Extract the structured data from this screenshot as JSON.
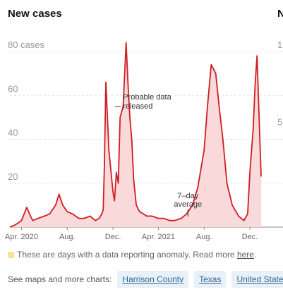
{
  "left_title": "New cases",
  "right_title": "N",
  "right_ticks": [
    "1",
    "5"
  ],
  "footnote": {
    "text": "These are days with a data reporting anomaly. Read more ",
    "link": "here",
    "end": "."
  },
  "more": {
    "label": "See maps and more charts:",
    "links": [
      "Harrison County",
      "Texas",
      "United States"
    ]
  },
  "colors": {
    "line": "#cf1d24",
    "fill": "#f9d9d9",
    "grid": "#e2e2e2",
    "anomaly": "#f6e29b"
  },
  "chart_data": {
    "type": "area",
    "title": "New cases",
    "xlim": [
      "2020-03-01",
      "2021-12-31"
    ],
    "ylim": [
      0,
      85
    ],
    "yticks": [
      {
        "value": 20,
        "label": "20"
      },
      {
        "value": 40,
        "label": "40"
      },
      {
        "value": 60,
        "label": "60"
      },
      {
        "value": 80,
        "label": "80 cases"
      }
    ],
    "xticks": [
      {
        "date": "2020-04-01",
        "label": "Apr. 2020"
      },
      {
        "date": "2020-08-01",
        "label": "Aug."
      },
      {
        "date": "2020-12-01",
        "label": "Dec."
      },
      {
        "date": "2021-04-01",
        "label": "Apr. 2021"
      },
      {
        "date": "2021-08-01",
        "label": "Aug."
      },
      {
        "date": "2021-12-01",
        "label": "Dec."
      }
    ],
    "series": [
      {
        "x": [
          "2020-03-01",
          "2020-03-15",
          "2020-04-01",
          "2020-04-15",
          "2020-04-25",
          "2020-05-01",
          "2020-05-15",
          "2020-06-01",
          "2020-06-15",
          "2020-07-01",
          "2020-07-10",
          "2020-07-20",
          "2020-08-01",
          "2020-08-15",
          "2020-09-01",
          "2020-09-15",
          "2020-10-01",
          "2020-10-15",
          "2020-10-25",
          "2020-11-01",
          "2020-11-05",
          "2020-11-08",
          "2020-11-12",
          "2020-11-20",
          "2020-12-01",
          "2020-12-05",
          "2020-12-10",
          "2020-12-15",
          "2020-12-20",
          "2020-12-28",
          "2021-01-05",
          "2021-01-10",
          "2021-01-15",
          "2021-01-20",
          "2021-01-25",
          "2021-02-01",
          "2021-02-10",
          "2021-02-20",
          "2021-03-01",
          "2021-03-15",
          "2021-04-01",
          "2021-04-15",
          "2021-05-01",
          "2021-05-15",
          "2021-06-01",
          "2021-06-15",
          "2021-07-01",
          "2021-07-15",
          "2021-08-01",
          "2021-08-10",
          "2021-08-20",
          "2021-09-01",
          "2021-09-10",
          "2021-09-20",
          "2021-10-01",
          "2021-10-15",
          "2021-11-01",
          "2021-11-15",
          "2021-11-25",
          "2021-12-01",
          "2021-12-10",
          "2021-12-15",
          "2021-12-20",
          "2021-12-31"
        ],
        "values": [
          0,
          1,
          3,
          9,
          5,
          3,
          4,
          5,
          6,
          10,
          15,
          10,
          7,
          6,
          4,
          4,
          5,
          3,
          4,
          6,
          8,
          28,
          66,
          35,
          16,
          12,
          25,
          20,
          50,
          55,
          84,
          65,
          50,
          40,
          22,
          10,
          7,
          6,
          5,
          5,
          4,
          4,
          3,
          3,
          4,
          6,
          10,
          18,
          35,
          55,
          74,
          70,
          55,
          40,
          20,
          10,
          5,
          3,
          6,
          25,
          45,
          65,
          78,
          23
        ]
      }
    ],
    "annotations": [
      {
        "text": "Probable data released",
        "lines": [
          "Probable data",
          "released"
        ],
        "date": "2020-12-20",
        "value": 60
      },
      {
        "text": "7-day average",
        "lines": [
          "7–day",
          "average"
        ],
        "date": "2021-06-15",
        "value": 6
      }
    ]
  }
}
